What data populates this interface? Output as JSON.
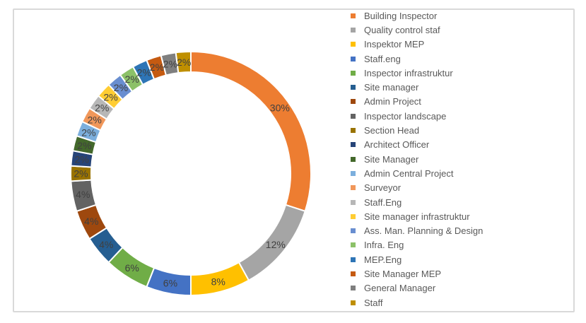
{
  "frame": {
    "background": "#FFFFFF",
    "border_color": "#D9D9D9"
  },
  "chart_data": {
    "type": "pie",
    "subtype": "doughnut",
    "units": "percent",
    "legend_position": "right",
    "start_angle_deg": 0,
    "direction": "clockwise",
    "donut_hole_ratio": 0.83,
    "grid": false,
    "label_color": "#404040",
    "legend_text_color": "#595959",
    "categories": [
      "Building Inspector",
      "Quality control staf",
      "Inspektor MEP",
      "Staff.eng",
      "Inspector infrastruktur",
      "Site manager",
      "Admin Project",
      "Inspector landscape",
      "Section Head",
      "Architect Officer",
      "Site Manager",
      "Admin Central Project",
      "Surveyor",
      "Staff.Eng",
      "Site manager infrastruktur",
      "Ass. Man. Planning & Design",
      "Infra. Eng",
      "MEP.Eng",
      "Site Manager MEP",
      "General Manager",
      "Staff"
    ],
    "values": [
      30,
      12,
      8,
      6,
      6,
      4,
      4,
      4,
      2,
      2,
      2,
      2,
      2,
      2,
      2,
      2,
      2,
      2,
      2,
      2,
      2
    ],
    "labels": [
      "30%",
      "12%",
      "8%",
      "6%",
      "6%",
      "4%",
      "4%",
      "4%",
      "2%",
      "2%",
      "2%",
      "2%",
      "2%",
      "2%",
      "2%",
      "2%",
      "2%",
      "2%",
      "2%",
      "2%",
      "2%"
    ],
    "colors": [
      "#ED7D31",
      "#A5A5A5",
      "#FFC000",
      "#4472C4",
      "#70AD47",
      "#255E91",
      "#9E480E",
      "#636363",
      "#997300",
      "#264478",
      "#43682B",
      "#7CAFDD",
      "#F1975A",
      "#B7B7B7",
      "#FFCD33",
      "#698ED0",
      "#8CC168",
      "#2E75B6",
      "#C55A11",
      "#7F7F7F",
      "#BF8F00"
    ]
  }
}
